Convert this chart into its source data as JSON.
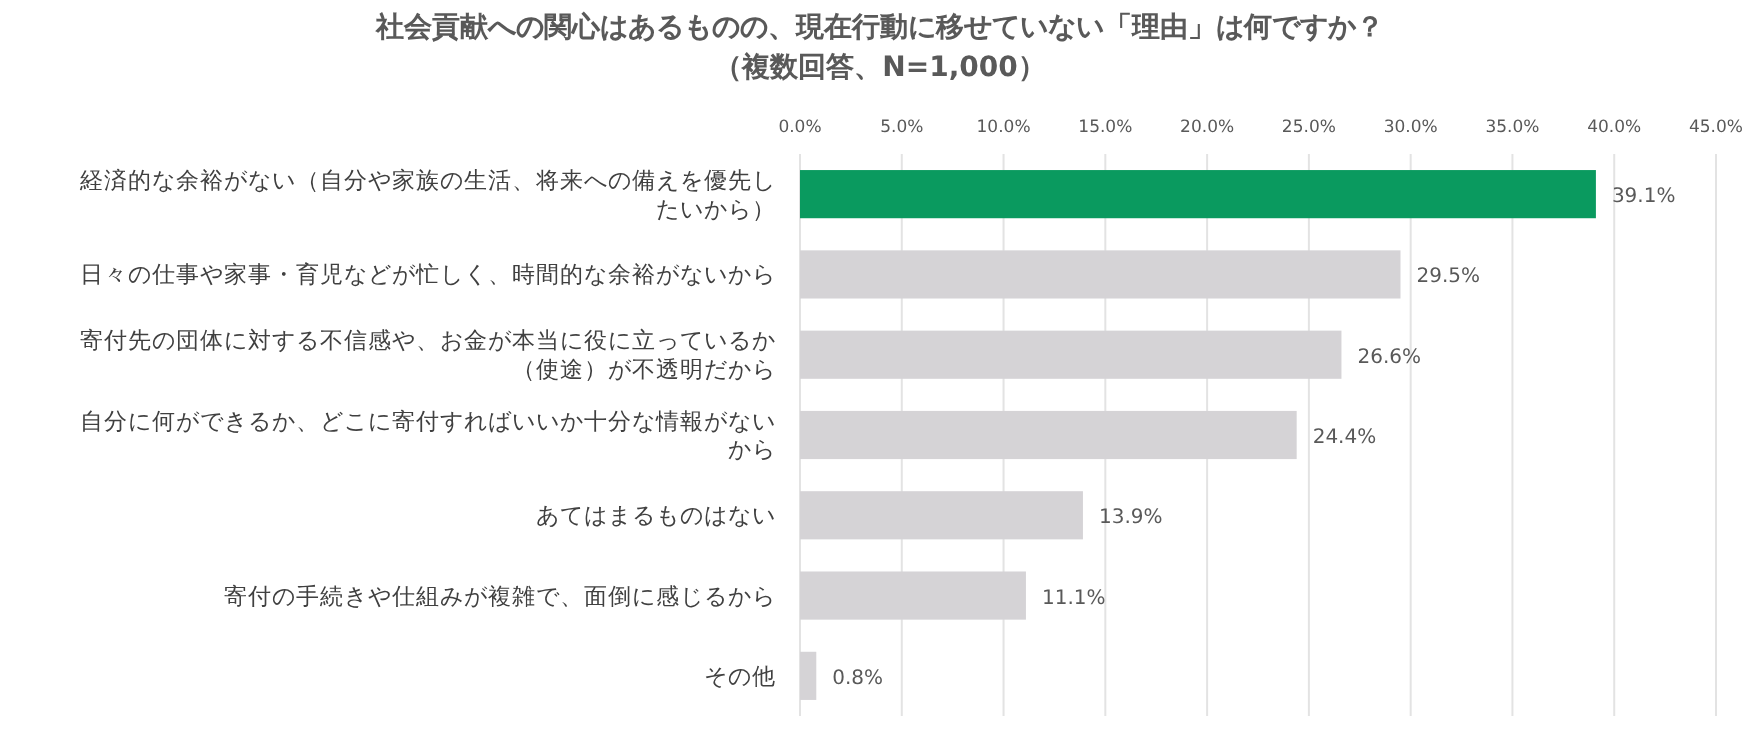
{
  "chart_data": {
    "type": "bar",
    "orientation": "horizontal",
    "title": "社会貢献への関心はあるものの、現在行動に移せていない「理由」は何ですか？",
    "subtitle": "（複数回答、N=1,000）",
    "categories": [
      "経済的な余裕がない（自分や家族の生活、将来への備えを優先したいから）",
      "日々の仕事や家事・育児などが忙しく、時間的な余裕がないから",
      "寄付先の団体に対する不信感や、お金が本当に役に立っているか（使途）が不透明だから",
      "自分に何ができるか、どこに寄付すればいいか十分な情報がないから",
      "あてはまるものはない",
      "寄付の手続きや仕組みが複雑で、面倒に感じるから",
      "その他"
    ],
    "values": [
      39.1,
      29.5,
      26.6,
      24.4,
      13.9,
      11.1,
      0.8
    ],
    "colors": [
      "#0a9a5f",
      "#d5d3d6",
      "#d5d3d6",
      "#d5d3d6",
      "#d5d3d6",
      "#d5d3d6",
      "#d5d3d6"
    ],
    "value_labels": [
      "39.1%",
      "29.5%",
      "26.6%",
      "24.4%",
      "13.9%",
      "11.1%",
      "0.8%"
    ],
    "xlim": [
      0,
      45
    ],
    "xticks": [
      {
        "value": 0,
        "label": "0.0%"
      },
      {
        "value": 5,
        "label": "5.0%"
      },
      {
        "value": 10,
        "label": "10.0%"
      },
      {
        "value": 15,
        "label": "15.0%"
      },
      {
        "value": 20,
        "label": "20.0%"
      },
      {
        "value": 25,
        "label": "25.0%"
      },
      {
        "value": 30,
        "label": "30.0%"
      },
      {
        "value": 35,
        "label": "35.0%"
      },
      {
        "value": 40,
        "label": "40.0%"
      },
      {
        "value": 45,
        "label": "45.0%"
      }
    ],
    "grid": "x"
  }
}
